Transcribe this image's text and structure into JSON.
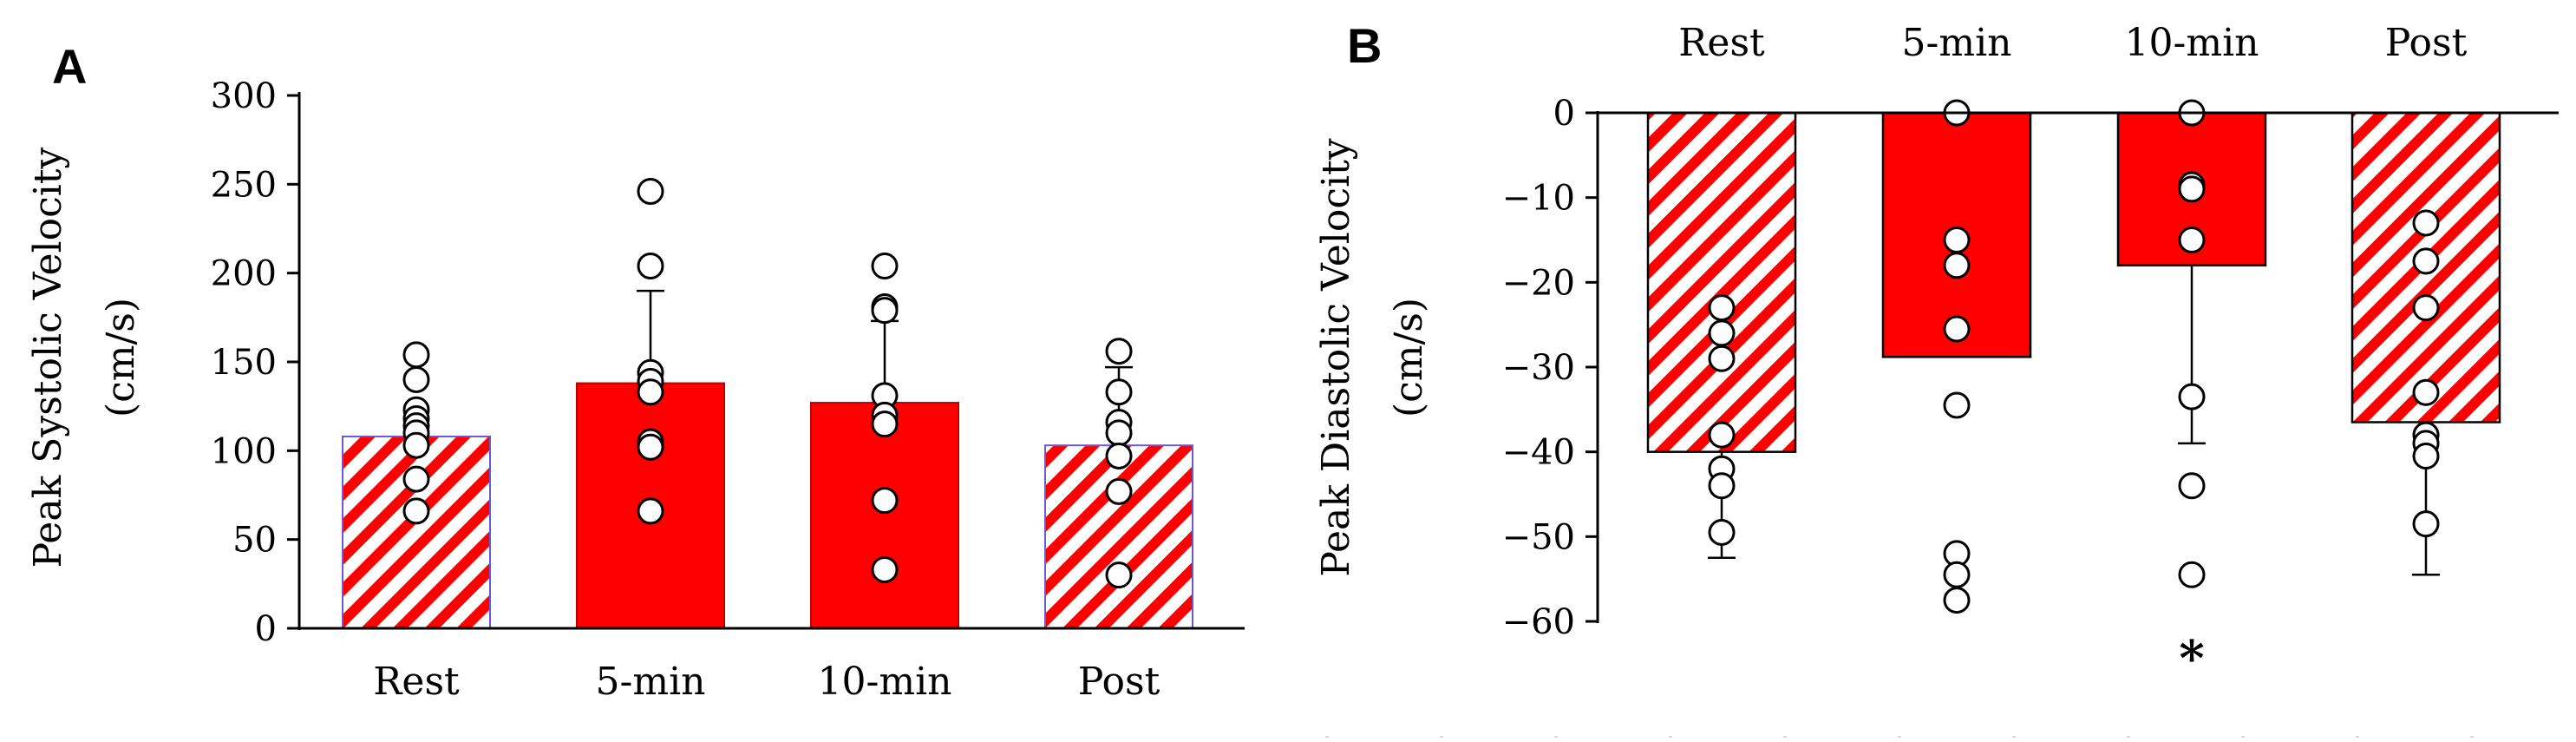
{
  "chart_data": [
    {
      "panel_label": "A",
      "type": "bar",
      "ylabel_line1": "Peak Systolic Velocity",
      "ylabel_line2": "(cm/s)",
      "ylim": [
        0,
        300
      ],
      "yticks": [
        0,
        50,
        100,
        150,
        200,
        250,
        300
      ],
      "categories": [
        "Rest",
        "5-min",
        "10-min",
        "Post"
      ],
      "bar_styles": [
        "hatched",
        "solid",
        "solid",
        "hatched"
      ],
      "means": [
        108,
        138,
        127,
        103
      ],
      "error_upper": [
        null,
        190,
        173,
        147
      ],
      "points": [
        [
          154,
          140,
          123,
          118,
          114,
          110,
          103,
          84,
          66
        ],
        [
          246,
          204,
          144,
          139,
          133,
          105,
          102,
          66
        ],
        [
          204,
          181,
          179,
          131,
          120,
          115,
          72,
          33
        ],
        [
          156,
          133,
          116,
          110,
          97,
          77,
          30
        ]
      ],
      "significance": [
        "",
        "",
        "",
        ""
      ]
    },
    {
      "panel_label": "B",
      "type": "bar",
      "ylabel_line1": "Peak Diastolic  Velocity",
      "ylabel_line2": "(cm/s)",
      "ylim": [
        -60,
        0
      ],
      "yticks": [
        0,
        -10,
        -20,
        -30,
        -40,
        -50,
        -60
      ],
      "categories": [
        "Rest",
        "5-min",
        "10-min",
        "Post"
      ],
      "bar_styles": [
        "hatched",
        "solid",
        "solid",
        "hatched"
      ],
      "means": [
        -40,
        -28.8,
        -18,
        -36.5
      ],
      "error_lower": [
        -52.5,
        null,
        -39,
        -54.5
      ],
      "points": [
        [
          -23,
          -26,
          -29,
          -38,
          -42,
          -44,
          -49.5
        ],
        [
          0,
          -15,
          -18,
          -25.5,
          -34.5,
          -52,
          -54.5,
          -57.5
        ],
        [
          0,
          -8.5,
          -9,
          -15,
          -33.5,
          -44,
          -54.5
        ],
        [
          -13,
          -17.5,
          -23,
          -33,
          -38,
          -39,
          -40.5,
          -48.5
        ]
      ],
      "significance": [
        "",
        "",
        "*",
        ""
      ]
    }
  ],
  "colors": {
    "bar_fill": "#ff0000",
    "bar_edge_solid": "#c00000",
    "bar_edge_hatched": "#6a5acd",
    "hatch_bg": "#ffffff",
    "axis": "#000000",
    "point_fill": "#ffffff",
    "point_stroke": "#000000"
  }
}
